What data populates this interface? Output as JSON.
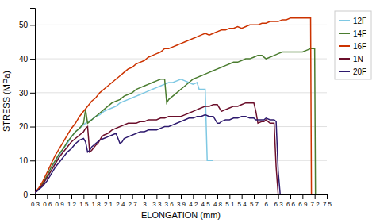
{
  "chart_data": {
    "type": "line",
    "xlabel": "ELONGATION (mm)",
    "ylabel": "STRESS (MPa)",
    "xlim": [
      0.3,
      7.5
    ],
    "ylim": [
      0,
      55
    ],
    "xticks": [
      0.3,
      0.6,
      0.9,
      1.2,
      1.5,
      1.8,
      2.1,
      2.4,
      2.7,
      3,
      3.3,
      3.6,
      3.9,
      4.2,
      4.5,
      4.8,
      5.1,
      5.4,
      5.7,
      6,
      6.3,
      6.6,
      6.9,
      7.2,
      7.5
    ],
    "yticks": [
      0,
      10,
      20,
      30,
      40,
      50
    ],
    "grid": "y",
    "legend": "right",
    "series": [
      {
        "name": "12F",
        "color": "#7EC8E3",
        "x": [
          0.3,
          0.4,
          0.5,
          0.6,
          0.7,
          0.8,
          0.9,
          1.0,
          1.1,
          1.2,
          1.3,
          1.4,
          1.5,
          1.6,
          1.7,
          1.8,
          1.9,
          2.0,
          2.1,
          2.2,
          2.3,
          2.4,
          2.5,
          2.6,
          2.7,
          2.8,
          2.9,
          3.0,
          3.1,
          3.2,
          3.3,
          3.4,
          3.5,
          3.6,
          3.7,
          3.8,
          3.9,
          4.0,
          4.1,
          4.2,
          4.3,
          4.35,
          4.4,
          4.45,
          4.5,
          4.55,
          4.6,
          4.65,
          4.7
        ],
        "values": [
          0.5,
          1.5,
          3,
          5,
          7,
          9.5,
          11.5,
          13.5,
          15,
          17,
          18.5,
          19.5,
          20.5,
          21.5,
          22,
          23,
          23.5,
          24.5,
          25,
          25.5,
          26,
          27,
          27.5,
          28,
          28.5,
          29,
          29.5,
          30,
          30.5,
          31,
          31.5,
          32,
          32.5,
          33,
          33,
          33.5,
          34,
          33.5,
          33,
          32.5,
          33,
          31,
          31,
          31,
          31,
          10,
          10,
          10,
          10
        ]
      },
      {
        "name": "14F",
        "color": "#4a7c2f",
        "x": [
          0.3,
          0.4,
          0.5,
          0.6,
          0.7,
          0.8,
          0.9,
          1.0,
          1.1,
          1.2,
          1.3,
          1.4,
          1.5,
          1.55,
          1.6,
          1.65,
          1.7,
          1.8,
          1.9,
          2.0,
          2.1,
          2.2,
          2.3,
          2.4,
          2.5,
          2.6,
          2.7,
          2.8,
          2.9,
          3.0,
          3.1,
          3.2,
          3.3,
          3.4,
          3.5,
          3.55,
          3.6,
          3.7,
          3.8,
          3.9,
          4.0,
          4.1,
          4.2,
          4.3,
          4.4,
          4.5,
          4.6,
          4.7,
          4.8,
          4.9,
          5.0,
          5.1,
          5.2,
          5.3,
          5.4,
          5.5,
          5.6,
          5.7,
          5.8,
          5.9,
          6.0,
          6.1,
          6.2,
          6.3,
          6.4,
          6.5,
          6.6,
          6.7,
          6.8,
          6.9,
          7.0,
          7.1,
          7.2,
          7.22
        ],
        "values": [
          0.5,
          1.5,
          3.5,
          5.5,
          8,
          10,
          12,
          13.5,
          15.5,
          17,
          18.5,
          19.5,
          21,
          25,
          21,
          21.5,
          22,
          23,
          24,
          25,
          26,
          27,
          27.5,
          28,
          29,
          29.5,
          30,
          31,
          31.5,
          32,
          32.5,
          33,
          33.5,
          34,
          34,
          27,
          28,
          29,
          30,
          31,
          32,
          33,
          34,
          34.5,
          35,
          35.5,
          36,
          36.5,
          37,
          37.5,
          38,
          38.5,
          39,
          39,
          39.5,
          40,
          40,
          40.5,
          41,
          41,
          40,
          40.5,
          41,
          41.5,
          42,
          42,
          42,
          42,
          42,
          42,
          42.5,
          43,
          43,
          0
        ]
      },
      {
        "name": "16F",
        "color": "#cc3300",
        "x": [
          0.3,
          0.4,
          0.5,
          0.6,
          0.7,
          0.8,
          0.9,
          1.0,
          1.1,
          1.2,
          1.3,
          1.4,
          1.5,
          1.6,
          1.7,
          1.8,
          1.9,
          2.0,
          2.1,
          2.2,
          2.3,
          2.4,
          2.5,
          2.6,
          2.7,
          2.8,
          2.9,
          3.0,
          3.1,
          3.2,
          3.3,
          3.4,
          3.5,
          3.6,
          3.7,
          3.8,
          3.9,
          4.0,
          4.1,
          4.2,
          4.3,
          4.4,
          4.5,
          4.6,
          4.7,
          4.8,
          4.9,
          5.0,
          5.1,
          5.2,
          5.3,
          5.4,
          5.5,
          5.6,
          5.7,
          5.8,
          5.9,
          6.0,
          6.1,
          6.2,
          6.3,
          6.4,
          6.5,
          6.6,
          6.7,
          6.8,
          6.9,
          7.0,
          7.1,
          7.12
        ],
        "values": [
          0.5,
          2,
          4,
          6.5,
          9,
          11.5,
          13.5,
          15.5,
          17.5,
          19.5,
          21,
          23,
          24.5,
          26,
          27.5,
          28.5,
          30,
          31,
          32,
          33,
          34,
          35,
          36,
          37,
          37.5,
          38.5,
          39,
          39.5,
          40.5,
          41,
          41.5,
          42,
          43,
          43,
          43.5,
          44,
          44.5,
          45,
          45.5,
          46,
          46.5,
          47,
          47.5,
          47,
          47.5,
          48,
          48.5,
          48.5,
          49,
          49,
          49.5,
          49,
          49.5,
          50,
          50,
          50,
          50.5,
          50.5,
          51,
          51,
          51,
          51.5,
          51.5,
          52,
          52,
          52,
          52,
          52,
          52,
          0
        ]
      },
      {
        "name": "1N",
        "color": "#6b0f2b",
        "x": [
          0.3,
          0.4,
          0.5,
          0.6,
          0.7,
          0.8,
          0.9,
          1.0,
          1.1,
          1.2,
          1.3,
          1.4,
          1.5,
          1.55,
          1.6,
          1.65,
          1.7,
          1.8,
          1.85,
          1.9,
          1.95,
          2.0,
          2.1,
          2.2,
          2.3,
          2.4,
          2.5,
          2.6,
          2.7,
          2.8,
          2.9,
          3.0,
          3.1,
          3.2,
          3.3,
          3.4,
          3.5,
          3.6,
          3.7,
          3.8,
          3.9,
          4.0,
          4.1,
          4.2,
          4.3,
          4.4,
          4.5,
          4.6,
          4.7,
          4.8,
          4.9,
          5.0,
          5.1,
          5.2,
          5.3,
          5.4,
          5.5,
          5.6,
          5.7,
          5.75,
          5.8,
          5.9,
          5.95,
          6.0,
          6.05,
          6.1,
          6.15,
          6.2,
          6.25,
          6.3
        ],
        "values": [
          0.5,
          1.5,
          3,
          5,
          7,
          9,
          11,
          12.5,
          14,
          15.5,
          16.5,
          17.5,
          18.5,
          19.5,
          20,
          12.5,
          13,
          14.5,
          15,
          16,
          17,
          17.5,
          18,
          19,
          19.5,
          20,
          20.5,
          21,
          21,
          21,
          21.5,
          21.5,
          22,
          22,
          22,
          22.5,
          22.5,
          23,
          23,
          23,
          23,
          23.5,
          24,
          24.5,
          25,
          25.5,
          26,
          26,
          26.5,
          26.5,
          24.5,
          25,
          25.5,
          26,
          26,
          26.5,
          27,
          27,
          27,
          24.5,
          21,
          21.5,
          21.5,
          22,
          21.5,
          21,
          21,
          21,
          8,
          0
        ]
      },
      {
        "name": "20F",
        "color": "#2e1a6e",
        "x": [
          0.3,
          0.4,
          0.5,
          0.6,
          0.7,
          0.8,
          0.9,
          1.0,
          1.1,
          1.2,
          1.3,
          1.4,
          1.5,
          1.55,
          1.6,
          1.65,
          1.7,
          1.8,
          1.9,
          2.0,
          2.1,
          2.2,
          2.3,
          2.4,
          2.45,
          2.5,
          2.6,
          2.7,
          2.8,
          2.9,
          3.0,
          3.1,
          3.2,
          3.3,
          3.4,
          3.5,
          3.6,
          3.7,
          3.8,
          3.9,
          4.0,
          4.1,
          4.2,
          4.3,
          4.4,
          4.5,
          4.6,
          4.7,
          4.8,
          4.85,
          4.9,
          5.0,
          5.1,
          5.2,
          5.3,
          5.4,
          5.5,
          5.6,
          5.7,
          5.75,
          5.8,
          5.9,
          5.95,
          6.0,
          6.1,
          6.2,
          6.25,
          6.3,
          6.35
        ],
        "values": [
          0.5,
          1.5,
          2.5,
          4,
          6,
          8,
          9.5,
          11,
          12.5,
          13.5,
          15,
          16,
          16.5,
          15.5,
          12.5,
          13,
          14,
          15,
          16,
          16.5,
          17,
          17.5,
          18,
          15,
          15.5,
          16.5,
          17,
          17.5,
          18,
          18.5,
          18.5,
          19,
          19,
          19,
          19.5,
          20,
          20,
          20.5,
          21,
          21.5,
          22,
          22.5,
          22.5,
          23,
          23,
          23.5,
          23,
          23,
          21,
          21,
          21.5,
          22,
          22,
          22.5,
          22.5,
          23,
          23,
          22.5,
          22.5,
          22,
          22,
          22,
          22,
          22.5,
          22,
          22,
          21.5,
          7,
          0
        ]
      }
    ]
  }
}
